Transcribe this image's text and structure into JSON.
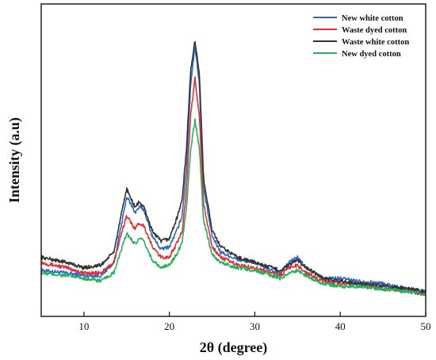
{
  "chart_data": {
    "type": "line",
    "title": "",
    "xlabel": "2θ (degree)",
    "ylabel": "Intensity (a.u)",
    "xlim": [
      5,
      50
    ],
    "ylim": [
      0,
      100
    ],
    "x_ticks": [
      10,
      20,
      30,
      40,
      50
    ],
    "x_tick_labels": [
      "10",
      "20",
      "30",
      "40",
      "50"
    ],
    "y_ticks_shown": false,
    "grid": false,
    "legend_position": "top-right",
    "series": [
      {
        "name": "New white cotton",
        "color": "#2f67c8",
        "points": [
          [
            5,
            9
          ],
          [
            8,
            8
          ],
          [
            10,
            7
          ],
          [
            12,
            7
          ],
          [
            13.5,
            12
          ],
          [
            14.5,
            28
          ],
          [
            15,
            37
          ],
          [
            15.5,
            34
          ],
          [
            16,
            31
          ],
          [
            16.5,
            33
          ],
          [
            17,
            32
          ],
          [
            18,
            22
          ],
          [
            19,
            17
          ],
          [
            20,
            18
          ],
          [
            21,
            25
          ],
          [
            21.5,
            30
          ],
          [
            22,
            48
          ],
          [
            22.5,
            80
          ],
          [
            23,
            94
          ],
          [
            23.5,
            80
          ],
          [
            24,
            40
          ],
          [
            25,
            22
          ],
          [
            26,
            16
          ],
          [
            28,
            13
          ],
          [
            30,
            12
          ],
          [
            32,
            9
          ],
          [
            33,
            8
          ],
          [
            34,
            12
          ],
          [
            35,
            14
          ],
          [
            36,
            10
          ],
          [
            38,
            6
          ],
          [
            40,
            6
          ],
          [
            42,
            5
          ],
          [
            45,
            4
          ],
          [
            48,
            2
          ],
          [
            50,
            1
          ]
        ]
      },
      {
        "name": "Waste dyed cotton",
        "color": "#e03030",
        "points": [
          [
            5,
            12
          ],
          [
            8,
            10
          ],
          [
            10,
            8
          ],
          [
            12,
            8
          ],
          [
            13.5,
            12
          ],
          [
            14.5,
            24
          ],
          [
            15,
            30
          ],
          [
            15.5,
            27
          ],
          [
            16,
            25
          ],
          [
            16.5,
            27
          ],
          [
            17,
            26
          ],
          [
            18,
            18
          ],
          [
            19,
            14
          ],
          [
            20,
            14
          ],
          [
            21,
            20
          ],
          [
            21.5,
            24
          ],
          [
            22,
            40
          ],
          [
            22.5,
            68
          ],
          [
            23,
            82
          ],
          [
            23.5,
            68
          ],
          [
            24,
            34
          ],
          [
            25,
            18
          ],
          [
            26,
            14
          ],
          [
            28,
            11
          ],
          [
            30,
            10
          ],
          [
            32,
            8
          ],
          [
            33,
            7
          ],
          [
            34,
            10
          ],
          [
            35,
            11
          ],
          [
            36,
            8
          ],
          [
            38,
            5
          ],
          [
            40,
            4
          ],
          [
            42,
            4
          ],
          [
            45,
            2
          ],
          [
            48,
            1
          ],
          [
            50,
            0
          ]
        ]
      },
      {
        "name": "Waste white cotton",
        "color": "#333333",
        "points": [
          [
            5,
            14
          ],
          [
            8,
            12
          ],
          [
            10,
            10
          ],
          [
            12,
            11
          ],
          [
            13.5,
            16
          ],
          [
            14.5,
            32
          ],
          [
            15,
            40
          ],
          [
            15.5,
            36
          ],
          [
            16,
            33
          ],
          [
            16.5,
            35
          ],
          [
            17,
            33
          ],
          [
            18,
            24
          ],
          [
            19,
            20
          ],
          [
            20,
            21
          ],
          [
            21,
            30
          ],
          [
            21.5,
            36
          ],
          [
            22,
            55
          ],
          [
            22.5,
            85
          ],
          [
            23,
            96
          ],
          [
            23.5,
            84
          ],
          [
            24,
            44
          ],
          [
            25,
            24
          ],
          [
            26,
            18
          ],
          [
            28,
            14
          ],
          [
            30,
            12
          ],
          [
            32,
            10
          ],
          [
            33,
            9
          ],
          [
            34,
            11
          ],
          [
            35,
            13
          ],
          [
            36,
            10
          ],
          [
            38,
            6
          ],
          [
            40,
            5
          ],
          [
            42,
            4
          ],
          [
            45,
            3
          ],
          [
            48,
            2
          ],
          [
            50,
            1
          ]
        ]
      },
      {
        "name": "New dyed cotton",
        "color": "#27b060",
        "points": [
          [
            5,
            8
          ],
          [
            8,
            7
          ],
          [
            10,
            6
          ],
          [
            12,
            5
          ],
          [
            13.5,
            8
          ],
          [
            14.5,
            18
          ],
          [
            15,
            23
          ],
          [
            15.5,
            21
          ],
          [
            16,
            19
          ],
          [
            16.5,
            21
          ],
          [
            17,
            20
          ],
          [
            18,
            13
          ],
          [
            19,
            10
          ],
          [
            20,
            11
          ],
          [
            21,
            16
          ],
          [
            21.5,
            20
          ],
          [
            22,
            33
          ],
          [
            22.5,
            55
          ],
          [
            23,
            66
          ],
          [
            23.5,
            56
          ],
          [
            24,
            28
          ],
          [
            25,
            15
          ],
          [
            26,
            12
          ],
          [
            28,
            10
          ],
          [
            30,
            9
          ],
          [
            32,
            7
          ],
          [
            33,
            6
          ],
          [
            34,
            8
          ],
          [
            35,
            9
          ],
          [
            36,
            7
          ],
          [
            38,
            4
          ],
          [
            40,
            3
          ],
          [
            42,
            3
          ],
          [
            45,
            2
          ],
          [
            48,
            1
          ],
          [
            50,
            0
          ]
        ]
      }
    ]
  }
}
